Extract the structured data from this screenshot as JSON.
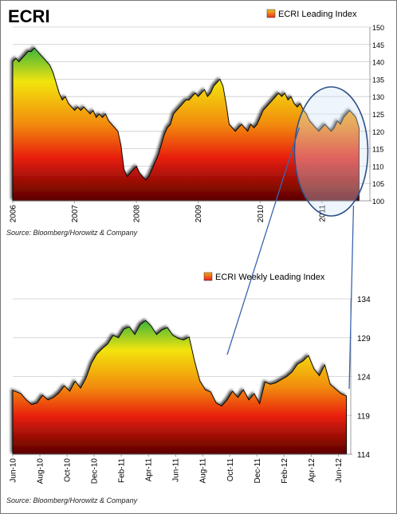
{
  "colors": {
    "gradient_top": "#3bb53b",
    "gradient_upper": "#f2e40f",
    "gradient_mid": "#f28a0c",
    "gradient_low": "#e81e0c",
    "gradient_bottom": "#5a0000",
    "ellipse": "#2d4f86",
    "connector": "#3a66b0",
    "grid": "#cccccc"
  },
  "chart_data": [
    {
      "type": "area",
      "title": "ECRI",
      "legend": "ECRI Leading Index",
      "legend_position": "top-right",
      "source": "Source: Bloomberg/Horowitz  & Company",
      "x_tick_labels": [
        "2006",
        "2007",
        "2008",
        "2009",
        "2010",
        "2011"
      ],
      "x_range": [
        2006.0,
        2011.75
      ],
      "ylim": [
        100,
        150
      ],
      "y_ticks": [
        100,
        105,
        110,
        115,
        120,
        125,
        130,
        135,
        140,
        145,
        150
      ],
      "grid": true,
      "annotation": "ellipse highlighting 2010.7-2011.6",
      "series": [
        {
          "x": [
            2006.0,
            2006.05,
            2006.1,
            2006.15,
            2006.2,
            2006.25,
            2006.3,
            2006.35,
            2006.4,
            2006.45,
            2006.5,
            2006.55,
            2006.6,
            2006.65,
            2006.7,
            2006.75,
            2006.8,
            2006.85,
            2006.9,
            2006.95,
            2007.0,
            2007.05,
            2007.1,
            2007.15,
            2007.2,
            2007.25,
            2007.3,
            2007.35,
            2007.4,
            2007.45,
            2007.5,
            2007.55,
            2007.6,
            2007.65,
            2007.7,
            2007.75,
            2007.8,
            2007.85,
            2007.9,
            2007.95,
            2008.0,
            2008.05,
            2008.1,
            2008.15,
            2008.2,
            2008.25,
            2008.3,
            2008.35,
            2008.4,
            2008.45,
            2008.5,
            2008.55,
            2008.6,
            2008.65,
            2008.7,
            2008.75,
            2008.8,
            2008.85,
            2008.9,
            2008.95,
            2009.0,
            2009.05,
            2009.1,
            2009.15,
            2009.2,
            2009.25,
            2009.3,
            2009.35,
            2009.4,
            2009.45,
            2009.5,
            2009.55,
            2009.6,
            2009.65,
            2009.7,
            2009.75,
            2009.8,
            2009.85,
            2009.9,
            2009.95,
            2010.0,
            2010.05,
            2010.1,
            2010.15,
            2010.2,
            2010.25,
            2010.3,
            2010.35,
            2010.4,
            2010.45,
            2010.5,
            2010.55,
            2010.6,
            2010.65,
            2010.7,
            2010.75,
            2010.8,
            2010.85,
            2010.9,
            2010.95,
            2011.0,
            2011.05,
            2011.1,
            2011.15,
            2011.2,
            2011.25,
            2011.3,
            2011.35,
            2011.4,
            2011.45,
            2011.5,
            2011.55,
            2011.6
          ],
          "values": [
            140,
            141,
            140,
            141,
            142,
            143,
            143,
            144,
            143,
            142,
            141,
            140,
            139,
            137,
            134,
            131,
            129,
            130,
            128,
            127,
            126,
            127,
            126,
            127,
            126,
            125,
            126,
            124,
            125,
            124,
            125,
            123,
            122,
            121,
            120,
            116,
            109,
            107,
            108,
            109,
            110,
            108,
            107,
            106,
            107,
            109,
            111,
            113,
            116,
            119,
            121,
            122,
            125,
            126,
            127,
            128,
            129,
            129,
            130,
            131,
            130,
            131,
            132,
            130,
            131,
            133,
            134,
            135,
            133,
            128,
            122,
            121,
            120,
            121,
            122,
            121,
            120,
            122,
            121,
            122,
            124,
            126,
            127,
            128,
            129,
            130,
            131,
            130,
            131,
            129,
            130,
            128,
            127,
            128,
            126,
            125,
            123,
            122,
            121,
            120,
            121,
            122,
            121,
            120,
            121,
            123,
            122,
            124,
            125,
            126,
            125,
            124,
            121
          ]
        }
      ]
    },
    {
      "type": "area",
      "legend": "ECRI Weekly Leading Index",
      "legend_position": "top-center",
      "source": "Source: Bloomberg/Horowitz  & Company",
      "x_tick_labels": [
        "Jun-10",
        "Aug-10",
        "Oct-10",
        "Dec-10",
        "Feb-11",
        "Apr-11",
        "Jun-11",
        "Aug-11",
        "Oct-11",
        "Dec-11",
        "Feb-12",
        "Apr-12",
        "Jun-12"
      ],
      "x_range": [
        0,
        24.8
      ],
      "ylim": [
        114,
        134
      ],
      "y_ticks": [
        114,
        119,
        124,
        129,
        134
      ],
      "grid": true,
      "series": [
        {
          "x": [
            0,
            0.6,
            1.0,
            1.4,
            1.8,
            2.2,
            2.6,
            3.0,
            3.4,
            3.8,
            4.2,
            4.6,
            5.0,
            5.4,
            5.8,
            6.2,
            6.6,
            7.0,
            7.4,
            7.8,
            8.2,
            8.6,
            9.0,
            9.4,
            9.8,
            10.2,
            10.6,
            11.0,
            11.4,
            11.8,
            12.2,
            12.6,
            13.0,
            13.4,
            13.8,
            14.2,
            14.6,
            15.0,
            15.4,
            15.8,
            16.2,
            16.6,
            17.0,
            17.4,
            17.8,
            18.2,
            18.6,
            19.0,
            19.4,
            19.8,
            20.2,
            20.6,
            21.0,
            21.4,
            21.8,
            22.2,
            22.6,
            23.0,
            23.4,
            23.8,
            24.2,
            24.6
          ],
          "values": [
            122.2,
            121.8,
            121.0,
            120.4,
            120.6,
            121.6,
            121.0,
            121.3,
            121.9,
            122.8,
            122.1,
            123.4,
            122.5,
            123.8,
            125.7,
            126.9,
            127.6,
            128.2,
            129.3,
            129.0,
            130.1,
            130.4,
            129.4,
            130.7,
            131.2,
            130.5,
            129.4,
            130.0,
            130.3,
            129.3,
            128.9,
            128.7,
            129.1,
            126.0,
            123.4,
            122.3,
            122.0,
            120.6,
            120.2,
            121.0,
            122.1,
            121.3,
            122.3,
            121.0,
            121.8,
            120.5,
            123.3,
            123.0,
            123.2,
            123.6,
            124.0,
            124.6,
            125.6,
            126.0,
            126.7,
            125.0,
            124.1,
            125.5,
            123.0,
            122.4,
            121.8,
            121.5
          ]
        }
      ]
    }
  ]
}
